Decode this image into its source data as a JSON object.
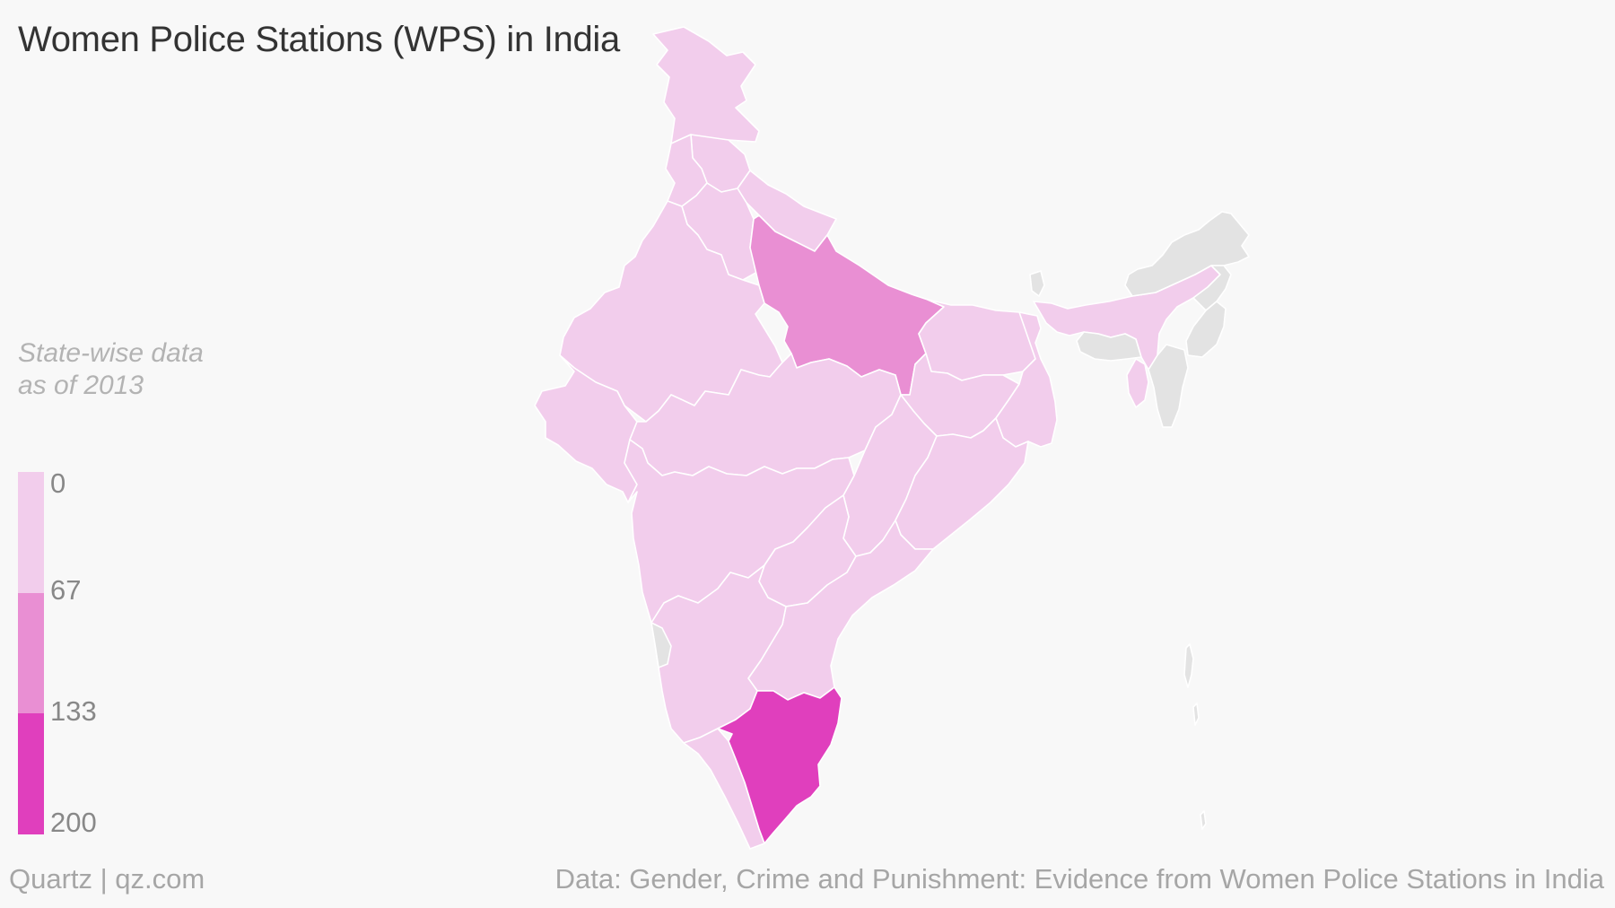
{
  "title": "Women Police Stations (WPS) in India",
  "legend": {
    "caption_line1": "State-wise data",
    "caption_line2": "as of 2013",
    "bins": [
      {
        "from": 0,
        "to": 67,
        "color": "#f2cdec"
      },
      {
        "from": 67,
        "to": 133,
        "color": "#e98fd3"
      },
      {
        "from": 133,
        "to": 200,
        "color": "#e03fbd"
      }
    ],
    "labels": [
      "0",
      "67",
      "133",
      "200"
    ]
  },
  "colors": {
    "no_data": "#e3e3e3",
    "background": "#f8f8f8",
    "border": "#ffffff"
  },
  "map_data": {
    "type": "choropleth",
    "region": "India",
    "value_field": "Women Police Stations",
    "states": [
      {
        "name": "Jammu and Kashmir",
        "bin": 0
      },
      {
        "name": "Himachal Pradesh",
        "bin": 0
      },
      {
        "name": "Punjab",
        "bin": 0
      },
      {
        "name": "Uttarakhand",
        "bin": 0
      },
      {
        "name": "Haryana",
        "bin": 0
      },
      {
        "name": "Rajasthan",
        "bin": 0
      },
      {
        "name": "Uttar Pradesh",
        "bin": 1
      },
      {
        "name": "Bihar",
        "bin": 0
      },
      {
        "name": "Gujarat",
        "bin": 0
      },
      {
        "name": "Madhya Pradesh",
        "bin": 0
      },
      {
        "name": "Jharkhand",
        "bin": 0
      },
      {
        "name": "West Bengal",
        "bin": 0
      },
      {
        "name": "Chhattisgarh",
        "bin": 0
      },
      {
        "name": "Odisha",
        "bin": 0
      },
      {
        "name": "Maharashtra",
        "bin": 0
      },
      {
        "name": "Telangana",
        "bin": 0
      },
      {
        "name": "Andhra Pradesh",
        "bin": 0
      },
      {
        "name": "Karnataka",
        "bin": 0
      },
      {
        "name": "Goa",
        "bin": null
      },
      {
        "name": "Kerala",
        "bin": 0
      },
      {
        "name": "Tamil Nadu",
        "bin": 2
      },
      {
        "name": "Sikkim",
        "bin": null
      },
      {
        "name": "Assam",
        "bin": 0
      },
      {
        "name": "Arunachal Pradesh",
        "bin": null
      },
      {
        "name": "Nagaland",
        "bin": null
      },
      {
        "name": "Meghalaya",
        "bin": null
      },
      {
        "name": "Manipur",
        "bin": null
      },
      {
        "name": "Tripura",
        "bin": 0
      },
      {
        "name": "Mizoram",
        "bin": null
      },
      {
        "name": "Andaman and Nicobar Islands",
        "bin": null
      }
    ]
  },
  "footer": {
    "left": "Quartz | qz.com",
    "right": "Data: Gender, Crime and Punishment: Evidence from Women Police Stations in India"
  }
}
